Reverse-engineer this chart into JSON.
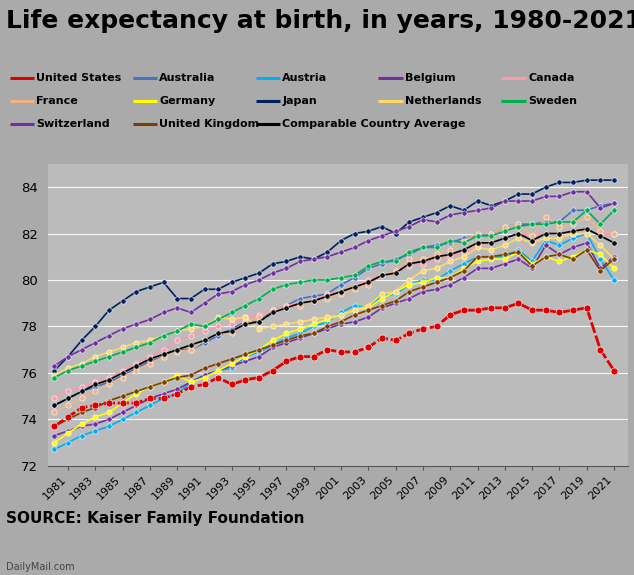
{
  "title": "Life expectancy at birth, in years, 1980-2021",
  "source": "SOURCE: Kaiser Family Foundation",
  "watermark": "DailyMail.com",
  "years": [
    1980,
    1981,
    1982,
    1983,
    1984,
    1985,
    1986,
    1987,
    1988,
    1989,
    1990,
    1991,
    1992,
    1993,
    1994,
    1995,
    1996,
    1997,
    1998,
    1999,
    2000,
    2001,
    2002,
    2003,
    2004,
    2005,
    2006,
    2007,
    2008,
    2009,
    2010,
    2011,
    2012,
    2013,
    2014,
    2015,
    2016,
    2017,
    2018,
    2019,
    2020,
    2021
  ],
  "series": [
    {
      "name": "United States",
      "color": "#dd0000",
      "values": [
        73.7,
        74.1,
        74.5,
        74.6,
        74.7,
        74.7,
        74.7,
        74.9,
        74.9,
        75.1,
        75.4,
        75.5,
        75.8,
        75.5,
        75.7,
        75.8,
        76.1,
        76.5,
        76.7,
        76.7,
        77.0,
        76.9,
        76.9,
        77.1,
        77.5,
        77.4,
        77.7,
        77.9,
        78.0,
        78.5,
        78.7,
        78.7,
        78.8,
        78.8,
        79.0,
        78.7,
        78.7,
        78.6,
        78.7,
        78.8,
        77.0,
        76.1
      ]
    },
    {
      "name": "Australia",
      "color": "#4472c4",
      "values": [
        74.6,
        74.9,
        75.2,
        75.4,
        75.6,
        75.9,
        76.2,
        76.5,
        76.7,
        77.0,
        77.0,
        77.3,
        77.6,
        77.9,
        78.2,
        78.2,
        78.7,
        78.9,
        79.2,
        79.3,
        79.4,
        79.8,
        80.1,
        80.5,
        80.7,
        80.9,
        81.1,
        81.4,
        81.5,
        81.6,
        81.8,
        81.9,
        82.0,
        82.3,
        82.4,
        82.4,
        82.5,
        82.5,
        83.0,
        83.0,
        83.2,
        83.3
      ]
    },
    {
      "name": "Austria",
      "color": "#00b0f0",
      "values": [
        72.7,
        73.0,
        73.3,
        73.5,
        73.7,
        74.0,
        74.3,
        74.6,
        74.9,
        75.1,
        75.6,
        75.9,
        76.1,
        76.2,
        76.7,
        76.9,
        77.2,
        77.5,
        77.7,
        78.0,
        78.2,
        78.6,
        78.9,
        78.8,
        79.3,
        79.4,
        79.8,
        80.0,
        80.0,
        80.4,
        80.7,
        81.0,
        81.0,
        81.0,
        81.3,
        80.8,
        81.7,
        81.5,
        81.8,
        82.0,
        80.9,
        80.0
      ]
    },
    {
      "name": "Belgium",
      "color": "#7030a0",
      "values": [
        73.3,
        73.5,
        73.7,
        73.8,
        74.0,
        74.3,
        74.6,
        74.9,
        75.1,
        75.3,
        75.6,
        75.9,
        76.1,
        76.3,
        76.5,
        76.7,
        77.1,
        77.3,
        77.5,
        77.7,
        77.9,
        78.1,
        78.2,
        78.4,
        78.8,
        79.0,
        79.2,
        79.5,
        79.6,
        79.8,
        80.1,
        80.5,
        80.5,
        80.7,
        80.9,
        80.5,
        81.5,
        81.1,
        81.4,
        81.6,
        80.5,
        81.0
      ]
    },
    {
      "name": "Canada",
      "color": "#ff99aa",
      "values": [
        74.9,
        75.2,
        75.4,
        75.6,
        75.8,
        76.1,
        76.4,
        76.7,
        77.0,
        77.4,
        77.6,
        77.8,
        78.0,
        78.1,
        78.4,
        78.5,
        78.7,
        78.9,
        79.0,
        79.1,
        79.4,
        79.5,
        79.7,
        80.0,
        80.2,
        80.4,
        80.6,
        80.7,
        80.9,
        81.0,
        81.2,
        81.5,
        81.6,
        81.8,
        82.0,
        81.9,
        82.0,
        82.0,
        82.0,
        82.2,
        81.9,
        82.0
      ]
    },
    {
      "name": "France",
      "color": "#f4b183",
      "values": [
        74.3,
        74.6,
        74.9,
        75.2,
        75.5,
        75.8,
        76.1,
        76.4,
        76.7,
        76.9,
        77.0,
        77.4,
        77.7,
        77.7,
        78.2,
        78.4,
        78.7,
        78.8,
        78.9,
        79.1,
        79.2,
        79.4,
        79.6,
        79.8,
        80.2,
        80.4,
        80.9,
        80.9,
        81.1,
        81.3,
        81.7,
        82.0,
        82.0,
        82.3,
        82.4,
        81.9,
        82.7,
        82.3,
        82.4,
        82.7,
        82.1,
        82.0
      ]
    },
    {
      "name": "Germany",
      "color": "#ffff00",
      "values": [
        73.0,
        73.4,
        73.8,
        74.1,
        74.3,
        74.7,
        75.1,
        75.4,
        75.6,
        75.9,
        75.6,
        75.8,
        76.1,
        76.4,
        76.7,
        77.0,
        77.4,
        77.7,
        77.9,
        78.1,
        78.3,
        78.5,
        78.7,
        78.8,
        79.2,
        79.5,
        79.8,
        79.9,
        80.1,
        80.1,
        80.5,
        80.8,
        80.9,
        80.9,
        81.2,
        80.7,
        81.0,
        80.8,
        81.0,
        81.3,
        81.1,
        80.5
      ]
    },
    {
      "name": "Japan",
      "color": "#002060",
      "values": [
        76.1,
        76.7,
        77.4,
        78.0,
        78.7,
        79.1,
        79.5,
        79.7,
        79.9,
        79.2,
        79.2,
        79.6,
        79.6,
        79.9,
        80.1,
        80.3,
        80.7,
        80.8,
        81.0,
        80.9,
        81.2,
        81.7,
        82.0,
        82.1,
        82.3,
        82.0,
        82.5,
        82.7,
        82.9,
        83.2,
        83.0,
        83.4,
        83.2,
        83.4,
        83.7,
        83.7,
        84.0,
        84.2,
        84.2,
        84.3,
        84.3,
        84.3
      ]
    },
    {
      "name": "Netherlands",
      "color": "#ffd966",
      "values": [
        75.9,
        76.2,
        76.4,
        76.7,
        76.9,
        77.1,
        77.3,
        77.4,
        77.6,
        77.8,
        77.9,
        78.0,
        78.4,
        78.3,
        78.4,
        77.9,
        78.0,
        78.1,
        78.2,
        78.3,
        78.4,
        78.5,
        78.7,
        78.9,
        79.4,
        79.5,
        80.0,
        80.4,
        80.5,
        80.8,
        81.0,
        81.4,
        81.3,
        81.5,
        81.8,
        81.6,
        81.8,
        81.8,
        82.0,
        82.0,
        81.5,
        80.9
      ]
    },
    {
      "name": "Sweden",
      "color": "#00b050",
      "values": [
        75.8,
        76.1,
        76.3,
        76.5,
        76.7,
        76.9,
        77.1,
        77.3,
        77.6,
        77.8,
        78.1,
        78.0,
        78.3,
        78.6,
        78.9,
        79.2,
        79.6,
        79.8,
        79.9,
        80.0,
        80.0,
        80.1,
        80.2,
        80.6,
        80.8,
        80.8,
        81.2,
        81.4,
        81.4,
        81.7,
        81.6,
        81.9,
        81.9,
        82.1,
        82.3,
        82.4,
        82.4,
        82.5,
        82.5,
        83.0,
        82.4,
        83.0
      ]
    },
    {
      "name": "Switzerland",
      "color": "#7030a0",
      "values": [
        76.3,
        76.7,
        77.0,
        77.3,
        77.6,
        77.9,
        78.1,
        78.3,
        78.6,
        78.8,
        78.6,
        79.0,
        79.4,
        79.5,
        79.8,
        80.0,
        80.3,
        80.5,
        80.8,
        80.9,
        81.0,
        81.2,
        81.4,
        81.7,
        81.9,
        82.1,
        82.3,
        82.6,
        82.5,
        82.8,
        82.9,
        83.0,
        83.1,
        83.4,
        83.4,
        83.4,
        83.6,
        83.6,
        83.8,
        83.8,
        83.1,
        83.3
      ]
    },
    {
      "name": "United Kingdom",
      "color": "#7b3f00",
      "values": [
        73.7,
        74.0,
        74.3,
        74.5,
        74.8,
        75.0,
        75.2,
        75.4,
        75.6,
        75.8,
        75.9,
        76.2,
        76.4,
        76.6,
        76.8,
        77.0,
        77.2,
        77.4,
        77.6,
        77.7,
        78.0,
        78.2,
        78.5,
        78.7,
        78.9,
        79.1,
        79.5,
        79.7,
        79.9,
        80.1,
        80.4,
        81.0,
        81.0,
        81.1,
        81.2,
        80.6,
        81.0,
        81.1,
        80.9,
        81.3,
        80.4,
        80.9
      ]
    },
    {
      "name": "Comparable Country Average",
      "color": "#000000",
      "values": [
        74.6,
        74.9,
        75.2,
        75.5,
        75.7,
        76.0,
        76.3,
        76.6,
        76.8,
        77.0,
        77.2,
        77.4,
        77.7,
        77.8,
        78.1,
        78.2,
        78.6,
        78.8,
        79.0,
        79.1,
        79.3,
        79.5,
        79.7,
        79.9,
        80.2,
        80.3,
        80.7,
        80.8,
        81.0,
        81.1,
        81.3,
        81.6,
        81.6,
        81.8,
        82.0,
        81.7,
        82.0,
        82.0,
        82.1,
        82.2,
        81.9,
        81.6
      ]
    }
  ],
  "legend_rows": [
    [
      0,
      1,
      2,
      3,
      4
    ],
    [
      5,
      6,
      7,
      8,
      9
    ],
    [
      10,
      11,
      12
    ]
  ],
  "ylim": [
    72,
    85
  ],
  "yticks": [
    72,
    74,
    76,
    78,
    80,
    82,
    84
  ],
  "bg_color": "#aaaaaa",
  "plot_bg_color": "#bbbbbb",
  "title_fontsize": 18,
  "legend_fontsize": 8,
  "source_fontsize": 11
}
